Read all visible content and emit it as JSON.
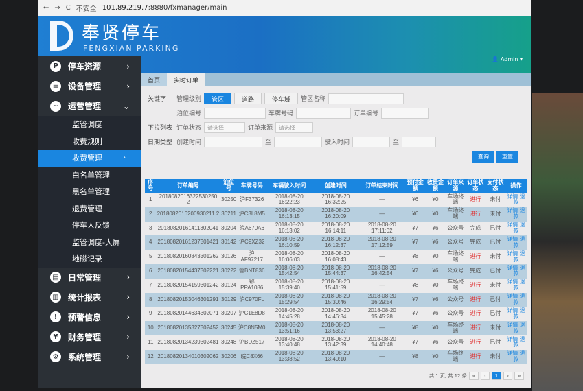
{
  "browser": {
    "security": "不安全",
    "url_host": "101.89.219.7",
    "url_rest": ":8880/fxmanager/main"
  },
  "brand": {
    "name": "奉贤停车",
    "name_en": "FENGXIAN PARKING"
  },
  "user": {
    "name": "Admin"
  },
  "sidebar": {
    "items": [
      {
        "label": "停车资源",
        "icon": "P"
      },
      {
        "label": "设备管理",
        "icon": "≡"
      },
      {
        "label": "运营管理",
        "icon": "~"
      }
    ],
    "sub": [
      "监管调度",
      "收费规则",
      "收费管理",
      "白名单管理",
      "黑名单管理",
      "退费管理",
      "停车人反馈",
      "监管调度-大屏",
      "地磁记录"
    ],
    "items2": [
      {
        "label": "日常管理",
        "icon": "▤"
      },
      {
        "label": "统计报表",
        "icon": "▥"
      },
      {
        "label": "预警信息",
        "icon": "!"
      },
      {
        "label": "财务管理",
        "icon": "¥"
      },
      {
        "label": "系统管理",
        "icon": "⚙"
      }
    ]
  },
  "tabs": [
    "首页",
    "实时订单"
  ],
  "form": {
    "keyword": "关键字",
    "dropdown": "下拉列表",
    "datetype": "日期类型",
    "level": "管理级别",
    "seg": [
      "管区",
      "道路",
      "停车域"
    ],
    "zone_name": "管区名称",
    "berth": "泊位编号",
    "plate": "车牌号码",
    "order_no": "订单编号",
    "order_status": "订单状态",
    "order_source": "订单来源",
    "please_select": "请选择",
    "create_time": "创建时间",
    "to": "至",
    "enter_time": "驶入时间",
    "search": "查询",
    "reset": "重置"
  },
  "table": {
    "headers": [
      "序号",
      "订单编号",
      "泊位号",
      "车牌号码",
      "车辆驶入时间",
      "创建时间",
      "订单结束时间",
      "预付金额",
      "收费金额",
      "订单来源",
      "订单状态",
      "支付状态",
      "操作"
    ],
    "rows": [
      [
        "1",
        "2018082016322530250 2",
        "30250",
        "沪F37326",
        "2018-08-20 16:22:23",
        "2018-08-20 16:32:25",
        "—",
        "¥6",
        "¥0",
        "车场终端",
        "进行",
        "未付",
        "详情 退款"
      ],
      [
        "2",
        "2018082016200930211 2",
        "30211",
        "沪C3L8M5",
        "2018-08-20 16:13:15",
        "2018-08-20 16:20:09",
        "—",
        "¥6",
        "¥0",
        "车场终端",
        "进行",
        "未付",
        "详情 退款"
      ],
      [
        "3",
        "20180820161411302041",
        "30204",
        "皖A670A6",
        "2018-08-20 16:13:02",
        "2018-08-20 16:14:11",
        "2018-08-20 17:11:02",
        "¥7",
        "¥6",
        "公众号",
        "完成",
        "已付",
        "详情 退款"
      ],
      [
        "4",
        "20180820161237301421",
        "30142",
        "沪C9XZ32",
        "2018-08-20 16:10:59",
        "2018-08-20 16:12:37",
        "2018-08-20 17:12:59",
        "¥7",
        "¥6",
        "公众号",
        "完成",
        "已付",
        "详情 退款"
      ],
      [
        "5",
        "20180820160843301262",
        "30126",
        "沪AF97217",
        "2018-08-20 16:06:03",
        "2018-08-20 16:08:43",
        "—",
        "¥8",
        "¥0",
        "车场终端",
        "进行",
        "未付",
        "详情 退款"
      ],
      [
        "6",
        "20180820154437302221",
        "30222",
        "鲁BNT836",
        "2018-08-20 15:42:54",
        "2018-08-20 15:44:37",
        "2018-08-20 16:42:54",
        "¥7",
        "¥6",
        "公众号",
        "完成",
        "已付",
        "详情 退款"
      ],
      [
        "7",
        "20180820154159301242",
        "30124",
        "鄂PPA1086",
        "2018-08-20 15:39:40",
        "2018-08-20 15:41:59",
        "—",
        "¥8",
        "¥0",
        "车场终端",
        "进行",
        "未付",
        "详情 退款"
      ],
      [
        "8",
        "20180820153046301291",
        "30129",
        "沪C970FL",
        "2018-08-20 15:29:54",
        "2018-08-20 15:30:46",
        "2018-08-20 16:29:54",
        "¥7",
        "¥6",
        "公众号",
        "进行",
        "已付",
        "详情 退款"
      ],
      [
        "9",
        "20180820144634302071",
        "30207",
        "沪C1E8D8",
        "2018-08-20 14:45:28",
        "2018-08-20 14:46:34",
        "2018-08-20 15:45:28",
        "¥7",
        "¥6",
        "公众号",
        "进行",
        "已付",
        "详情 退款"
      ],
      [
        "10",
        "20180820135327302452",
        "30245",
        "沪C8N5M0",
        "2018-08-20 13:51:16",
        "2018-08-20 13:53:27",
        "—",
        "¥8",
        "¥0",
        "车场终端",
        "进行",
        "未付",
        "详情 退款"
      ],
      [
        "11",
        "20180820134239302481",
        "30248",
        "沪BDZ517",
        "2018-08-20 13:40:48",
        "2018-08-20 13:42:39",
        "2018-08-20 14:40:48",
        "¥7",
        "¥6",
        "公众号",
        "进行",
        "已付",
        "详情 退款"
      ],
      [
        "12",
        "20180820134010302062",
        "30206",
        "皖C8X66",
        "2018-08-20 13:38:52",
        "2018-08-20 13:40:10",
        "—",
        "¥8",
        "¥0",
        "车场终端",
        "进行",
        "未付",
        "详情 退款"
      ]
    ]
  },
  "pager": {
    "summary": "共 1 页, 共 12 条",
    "current": "1"
  },
  "colors": {
    "accent": "#1a86e0",
    "sidebar": "#2b3036",
    "status_red": "#e03030"
  }
}
